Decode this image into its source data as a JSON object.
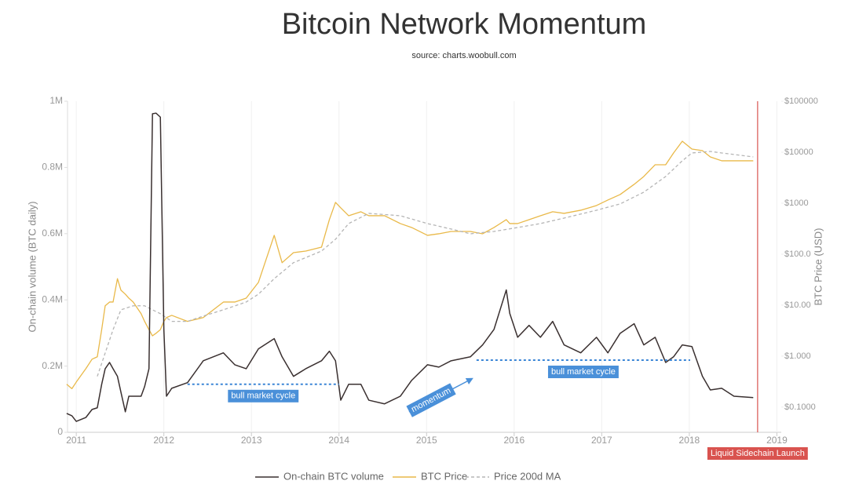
{
  "chart_data": {
    "type": "line",
    "title": "Bitcoin Network Momentum",
    "subtitle": "source: charts.woobull.com",
    "y_label": "On-chain volume (BTC daily)",
    "y2_label": "BTC Price (USD)",
    "xlim": [
      2010.9,
      2019.05
    ],
    "xticks": [
      2011,
      2012,
      2013,
      2014,
      2015,
      2016,
      2017,
      2018,
      2019
    ],
    "ylim": [
      0,
      1000000
    ],
    "yticks": [
      0,
      {
        "value": 200000,
        "label": "0.2M"
      },
      {
        "value": 400000,
        "label": "0.4M"
      },
      {
        "value": 600000,
        "label": "0.6M"
      },
      {
        "value": 800000,
        "label": "0.8M"
      },
      {
        "value": 1000000,
        "label": "1M"
      }
    ],
    "y2lim": [
      0.032,
      100000
    ],
    "y2log": true,
    "y2ticks": [
      {
        "value": 0.1,
        "label": "$0.1000"
      },
      {
        "value": 1,
        "label": "$1.000"
      },
      {
        "value": 10,
        "label": "$10.00"
      },
      {
        "value": 100,
        "label": "$100.0"
      },
      {
        "value": 1000,
        "label": "$1000"
      },
      {
        "value": 10000,
        "label": "$10000"
      },
      {
        "value": 100000,
        "label": "$100000"
      }
    ],
    "grid": true,
    "legend": "bottom",
    "x": [
      2010.89,
      2010.95,
      2011.0,
      2011.11,
      2011.18,
      2011.24,
      2011.29,
      2011.33,
      2011.38,
      2011.42,
      2011.47,
      2011.51,
      2011.56,
      2011.6,
      2011.65,
      2011.74,
      2011.78,
      2011.83,
      2011.87,
      2011.91,
      2011.96,
      2012.0,
      2012.03,
      2012.09,
      2012.27,
      2012.45,
      2012.68,
      2012.81,
      2012.94,
      2013.08,
      2013.26,
      2013.35,
      2013.48,
      2013.62,
      2013.8,
      2013.89,
      2013.96,
      2014.02,
      2014.11,
      2014.25,
      2014.34,
      2014.52,
      2014.7,
      2014.83,
      2015.01,
      2015.14,
      2015.28,
      2015.5,
      2015.64,
      2015.77,
      2015.91,
      2015.95,
      2016.04,
      2016.17,
      2016.3,
      2016.44,
      2016.57,
      2016.76,
      2016.94,
      2017.07,
      2017.21,
      2017.37,
      2017.48,
      2017.61,
      2017.73,
      2017.82,
      2017.92,
      2018.03,
      2018.15,
      2018.24,
      2018.37,
      2018.51,
      2018.73
    ],
    "series": [
      {
        "name": "On-chain BTC volume",
        "color": "#3a3030",
        "values": [
          57000,
          50000,
          33000,
          45000,
          69000,
          74000,
          145000,
          192000,
          211000,
          192000,
          169000,
          121000,
          62000,
          109000,
          109000,
          109000,
          138000,
          192000,
          962000,
          964000,
          952000,
          311000,
          109000,
          133000,
          150000,
          216000,
          240000,
          204000,
          192000,
          252000,
          283000,
          228000,
          169000,
          192000,
          216000,
          245000,
          216000,
          97000,
          145000,
          145000,
          97000,
          86000,
          109000,
          157000,
          204000,
          197000,
          216000,
          228000,
          264000,
          311000,
          430000,
          359000,
          287000,
          323000,
          287000,
          335000,
          264000,
          240000,
          287000,
          240000,
          299000,
          328000,
          264000,
          287000,
          211000,
          228000,
          264000,
          259000,
          169000,
          128000,
          133000,
          109000,
          105000
        ]
      },
      {
        "name": "BTC Price",
        "color": "#e9b949",
        "axis": "y2",
        "values": [
          0.28,
          0.23,
          0.31,
          0.57,
          0.87,
          0.97,
          3.3,
          9.7,
          11.5,
          11.5,
          33,
          19.6,
          16.4,
          13.7,
          11.5,
          6.8,
          4.8,
          3.3,
          2.5,
          2.8,
          3.3,
          4.8,
          5.7,
          6.3,
          4.8,
          5.7,
          11.5,
          11.5,
          13.7,
          28,
          234,
          68,
          107,
          115,
          137,
          475,
          1036,
          809,
          567,
          678,
          567,
          567,
          398,
          333,
          234,
          251,
          279,
          279,
          251,
          333,
          475,
          398,
          398,
          475,
          567,
          678,
          631,
          727,
          899,
          1153,
          1477,
          2340,
          3337,
          5674,
          5674,
          9653,
          16420,
          11530,
          10740,
          8090,
          6780,
          6780,
          6780
        ]
      },
      {
        "name": "Price 200d MA",
        "color": "#b5b5b5",
        "axis": "y2",
        "dash": true,
        "x": [
          2011.24,
          2011.33,
          2011.42,
          2011.51,
          2011.65,
          2011.78,
          2011.87,
          2011.96,
          2012.09,
          2012.27,
          2012.45,
          2012.68,
          2012.94,
          2013.08,
          2013.26,
          2013.48,
          2013.8,
          2013.96,
          2014.11,
          2014.34,
          2014.7,
          2015.01,
          2015.28,
          2015.5,
          2015.77,
          2016.04,
          2016.3,
          2016.57,
          2016.94,
          2017.21,
          2017.48,
          2017.73,
          2017.92,
          2018.03,
          2018.24,
          2018.37,
          2018.73
        ],
        "values": [
          0.4,
          1.15,
          3.3,
          8.1,
          9.7,
          9.7,
          8.1,
          6.8,
          4.8,
          4.8,
          6.1,
          8.1,
          11.5,
          16.4,
          33,
          68,
          115,
          196,
          398,
          631,
          567,
          398,
          311,
          251,
          279,
          333,
          398,
          510,
          727,
          966,
          1642,
          3337,
          6780,
          9653,
          10360,
          9653,
          8090
        ]
      }
    ],
    "annotations": [
      {
        "text": "bull market cycle",
        "x": [
          2012.27,
          2014.0
        ],
        "y": 145000
      },
      {
        "text": "bull market cycle",
        "x": [
          2015.57,
          2018.01
        ],
        "y": 218000
      },
      {
        "text": "momentum",
        "x": [
          2014.8,
          2015.52
        ],
        "y": [
          62000,
          162000
        ]
      },
      {
        "text": "Liquid Sidechain Launch",
        "x": 2018.78
      }
    ]
  }
}
